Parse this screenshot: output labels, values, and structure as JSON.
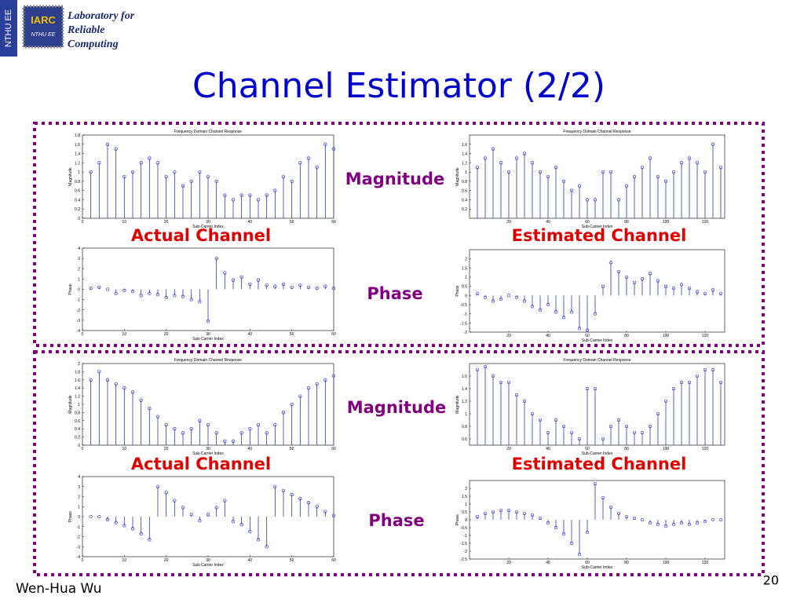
{
  "slide": {
    "logo_side": "NTHU EE",
    "logo_chip": "IARC",
    "logo_chip_sub": "NTHU EE",
    "logo_line1": "Laboratory for",
    "logo_line2": "Reliable",
    "logo_line3": "Computing",
    "title": "Channel Estimator (2/2)",
    "label_magnitude_1": "Magnitude",
    "label_phase_1": "Phase",
    "label_actual_1": "Actual Channel",
    "label_estimated_1": "Estimated Channel",
    "label_magnitude_2": "Magnitude",
    "label_phase_2": "Phase",
    "label_actual_2": "Actual Channel",
    "label_estimated_2": "Estimated Channel",
    "author": "Wen-Hua Wu",
    "page": "20"
  },
  "chart_data": [
    {
      "type": "stem",
      "title": "Frequency Domain Channel Response",
      "xlabel": "Sub-Carrier Index",
      "ylabel": "Magnitude",
      "color": "#3333cc",
      "x": [
        2,
        4,
        6,
        8,
        10,
        12,
        14,
        16,
        18,
        20,
        22,
        24,
        26,
        28,
        30,
        32,
        34,
        36,
        38,
        40,
        42,
        44,
        46,
        48,
        50,
        52,
        54,
        56,
        58,
        60
      ],
      "values": [
        1.0,
        1.2,
        1.6,
        1.5,
        0.9,
        1.0,
        1.2,
        1.3,
        1.2,
        0.9,
        1.0,
        0.7,
        0.8,
        1.0,
        0.9,
        0.8,
        0.5,
        0.4,
        0.5,
        0.5,
        0.4,
        0.5,
        0.6,
        0.9,
        0.8,
        1.2,
        1.3,
        1.1,
        1.6,
        1.5
      ],
      "xlim": [
        0,
        60
      ],
      "xticks": [
        0,
        10,
        20,
        30,
        40,
        50,
        60
      ],
      "ylim": [
        0,
        1.8
      ],
      "yticks": [
        0,
        0.2,
        0.4,
        0.6,
        0.8,
        1,
        1.2,
        1.4,
        1.6,
        1.8
      ]
    },
    {
      "type": "stem",
      "title": "Frequency Domain Channel Response",
      "xlabel": "Sub-Carrier Index",
      "ylabel": "Magnitude",
      "color": "#3333cc",
      "x": [
        4,
        8,
        12,
        16,
        20,
        24,
        28,
        32,
        36,
        40,
        44,
        48,
        52,
        56,
        60,
        64,
        68,
        72,
        76,
        80,
        84,
        88,
        92,
        96,
        100,
        104,
        108,
        112,
        116,
        120,
        124,
        128
      ],
      "values": [
        1.1,
        1.3,
        1.5,
        1.2,
        1.0,
        1.3,
        1.4,
        1.2,
        1.0,
        0.9,
        1.1,
        0.8,
        0.6,
        0.7,
        0.4,
        0.4,
        1.0,
        1.0,
        0.4,
        0.7,
        0.9,
        1.1,
        1.3,
        0.9,
        0.8,
        1.0,
        1.2,
        1.3,
        1.2,
        1.0,
        1.6,
        1.1
      ],
      "xlim": [
        0,
        130
      ],
      "xticks": [
        20,
        40,
        60,
        80,
        100,
        120
      ],
      "ylim": [
        0,
        1.8
      ],
      "yticks": [
        0.2,
        0.4,
        0.6,
        0.8,
        1,
        1.2,
        1.4,
        1.6
      ]
    },
    {
      "type": "stem",
      "xlabel": "Sub-Carrier Index",
      "ylabel": "Phase",
      "color": "#3333cc",
      "x": [
        2,
        4,
        6,
        8,
        10,
        12,
        14,
        16,
        18,
        20,
        22,
        24,
        26,
        28,
        30,
        32,
        34,
        36,
        38,
        40,
        42,
        44,
        46,
        48,
        50,
        52,
        54,
        56,
        58,
        60
      ],
      "values": [
        0.1,
        0.2,
        0,
        -0.4,
        -0.1,
        -0.2,
        -0.6,
        -0.4,
        -0.5,
        -0.8,
        -0.6,
        -0.7,
        -1.0,
        -1.2,
        -3.1,
        3.0,
        1.6,
        0.9,
        1.2,
        0.5,
        0.9,
        0.4,
        0.3,
        0.5,
        0.2,
        0.4,
        0.2,
        0.1,
        0.3,
        0.1
      ],
      "xlim": [
        0,
        60
      ],
      "xticks": [
        0,
        10,
        20,
        30,
        40,
        50,
        60
      ],
      "ylim": [
        -4,
        4
      ],
      "yticks": [
        -4,
        -3,
        -2,
        -1,
        0,
        1,
        2,
        3,
        4
      ]
    },
    {
      "type": "stem",
      "xlabel": "Sub-Carrier Index",
      "ylabel": "Phase",
      "color": "#3333cc",
      "x": [
        4,
        8,
        12,
        16,
        20,
        24,
        28,
        32,
        36,
        40,
        44,
        48,
        52,
        56,
        60,
        64,
        68,
        72,
        76,
        80,
        84,
        88,
        92,
        96,
        100,
        104,
        108,
        112,
        116,
        120,
        124,
        128
      ],
      "values": [
        0.1,
        -0.1,
        -0.3,
        -0.2,
        0,
        -0.1,
        -0.3,
        -0.6,
        -0.8,
        -0.5,
        -0.9,
        -1.2,
        -0.9,
        -1.8,
        -1.9,
        -1.0,
        0.5,
        1.8,
        1.3,
        1.0,
        0.7,
        0.9,
        1.2,
        0.8,
        0.5,
        0.4,
        0.6,
        0.4,
        0.2,
        0.1,
        0.3,
        0.1
      ],
      "xlim": [
        0,
        130
      ],
      "xticks": [
        20,
        40,
        60,
        80,
        100,
        120
      ],
      "ylim": [
        -2,
        2.5
      ],
      "yticks": [
        -2,
        -1.5,
        -1,
        -0.5,
        0,
        0.5,
        1,
        1.5,
        2
      ]
    },
    {
      "type": "stem",
      "title": "Frequency Domain Channel Response",
      "xlabel": "Sub-Carrier Index",
      "ylabel": "Magnitude",
      "color": "#3333cc",
      "x": [
        2,
        4,
        6,
        8,
        10,
        12,
        14,
        16,
        18,
        20,
        22,
        24,
        26,
        28,
        30,
        32,
        34,
        36,
        38,
        40,
        42,
        44,
        46,
        48,
        50,
        52,
        54,
        56,
        58,
        60
      ],
      "values": [
        1.6,
        1.8,
        1.6,
        1.5,
        1.4,
        1.3,
        1.1,
        0.9,
        0.7,
        0.5,
        0.4,
        0.3,
        0.4,
        0.6,
        0.5,
        0.3,
        0.1,
        0.1,
        0.3,
        0.4,
        0.5,
        0.3,
        0.5,
        0.8,
        1.0,
        1.2,
        1.4,
        1.5,
        1.6,
        1.7
      ],
      "xlim": [
        0,
        60
      ],
      "xticks": [
        0,
        10,
        20,
        30,
        40,
        50,
        60
      ],
      "ylim": [
        0,
        2
      ],
      "yticks": [
        0,
        0.2,
        0.4,
        0.6,
        0.8,
        1,
        1.2,
        1.4,
        1.6,
        1.8,
        2
      ]
    },
    {
      "type": "stem",
      "title": "Frequency Domain Channel Response",
      "xlabel": "Sub-Carrier Index",
      "ylabel": "Magnitude",
      "color": "#3333cc",
      "x": [
        4,
        8,
        12,
        16,
        20,
        24,
        28,
        32,
        36,
        40,
        44,
        48,
        52,
        56,
        60,
        64,
        68,
        72,
        76,
        80,
        84,
        88,
        92,
        96,
        100,
        104,
        108,
        112,
        116,
        120,
        124,
        128
      ],
      "values": [
        1.7,
        1.75,
        1.6,
        1.5,
        1.5,
        1.3,
        1.2,
        1.0,
        0.9,
        0.7,
        0.9,
        0.8,
        0.7,
        0.6,
        1.4,
        1.4,
        0.6,
        0.8,
        0.9,
        0.8,
        0.7,
        0.7,
        0.8,
        1.0,
        1.2,
        1.4,
        1.5,
        1.5,
        1.6,
        1.7,
        1.7,
        1.5
      ],
      "xlim": [
        0,
        130
      ],
      "xticks": [
        20,
        40,
        60,
        80,
        100,
        120
      ],
      "ylim": [
        0.5,
        1.8
      ],
      "yticks": [
        0.6,
        0.8,
        1,
        1.2,
        1.4,
        1.6
      ]
    },
    {
      "type": "stem",
      "xlabel": "Sub-Carrier Index",
      "ylabel": "Phase",
      "color": "#3333cc",
      "x": [
        2,
        4,
        6,
        8,
        10,
        12,
        14,
        16,
        18,
        20,
        22,
        24,
        26,
        28,
        30,
        32,
        34,
        36,
        38,
        40,
        42,
        44,
        46,
        48,
        50,
        52,
        54,
        56,
        58,
        60
      ],
      "values": [
        0,
        0,
        -0.3,
        -0.6,
        -0.9,
        -1.2,
        -1.7,
        -2.3,
        3.0,
        2.4,
        1.6,
        0.9,
        0.2,
        -0.4,
        0.2,
        0.9,
        1.6,
        -0.5,
        -0.8,
        -1.5,
        -2.3,
        -3.0,
        3.0,
        2.6,
        2.2,
        1.8,
        1.4,
        1.0,
        0.5,
        0.1
      ],
      "xlim": [
        0,
        60
      ],
      "xticks": [
        0,
        10,
        20,
        30,
        40,
        50,
        60
      ],
      "ylim": [
        -4,
        4
      ],
      "yticks": [
        -4,
        -3,
        -2,
        -1,
        0,
        1,
        2,
        3,
        4
      ]
    },
    {
      "type": "stem",
      "xlabel": "Sub-Carrier Index",
      "ylabel": "Phase",
      "color": "#3333cc",
      "x": [
        4,
        8,
        12,
        16,
        20,
        24,
        28,
        32,
        36,
        40,
        44,
        48,
        52,
        56,
        60,
        64,
        68,
        72,
        76,
        80,
        84,
        88,
        92,
        96,
        100,
        104,
        108,
        112,
        116,
        120,
        124,
        128
      ],
      "values": [
        0.2,
        0.4,
        0.5,
        0.6,
        0.6,
        0.5,
        0.4,
        0.3,
        0.1,
        -0.2,
        -0.5,
        -0.9,
        -1.5,
        -2.2,
        -0.8,
        2.3,
        1.4,
        0.8,
        0.4,
        0.2,
        0.1,
        0,
        -0.2,
        -0.3,
        -0.4,
        -0.3,
        -0.2,
        -0.3,
        -0.2,
        -0.1,
        0,
        0
      ],
      "xlim": [
        0,
        130
      ],
      "xticks": [
        20,
        40,
        60,
        80,
        100,
        120
      ],
      "ylim": [
        -2.5,
        2.5
      ],
      "yticks": [
        -2.5,
        -2,
        -1.5,
        -1,
        -0.5,
        0,
        0.5,
        1,
        1.5,
        2
      ]
    }
  ]
}
